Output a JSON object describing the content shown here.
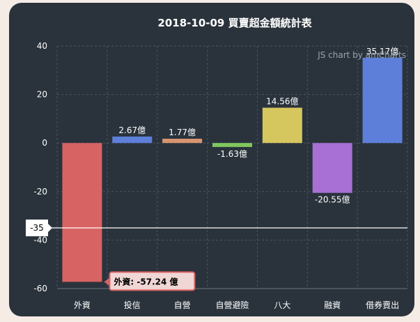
{
  "chart_data": {
    "type": "bar",
    "title": "2018-10-09 買賣超金額統計表",
    "categories": [
      "外資",
      "投信",
      "自營",
      "自營避險",
      "八大",
      "融資",
      "借券賣出"
    ],
    "values": [
      -57.24,
      2.67,
      1.77,
      -1.63,
      14.56,
      -20.55,
      35.17
    ],
    "data_labels": [
      "",
      "2.67億",
      "1.77億",
      "-1.63億",
      "14.56億",
      "-20.55億",
      "35.17億"
    ],
    "colors": [
      "#d86363",
      "#5e7fd9",
      "#d89570",
      "#80c85e",
      "#d6c65e",
      "#a86fd4",
      "#5e7fd9"
    ],
    "ylim": [
      -60,
      40
    ],
    "yticks": [
      -60,
      -40,
      -20,
      0,
      20,
      40
    ],
    "xlabel": "",
    "ylabel": "",
    "grid": true,
    "tooltip": {
      "category_index": 0,
      "text": "外資: -57.24 億"
    },
    "cursor": {
      "value": -35,
      "label": "-35"
    },
    "credit": "JS chart by amCharts"
  }
}
